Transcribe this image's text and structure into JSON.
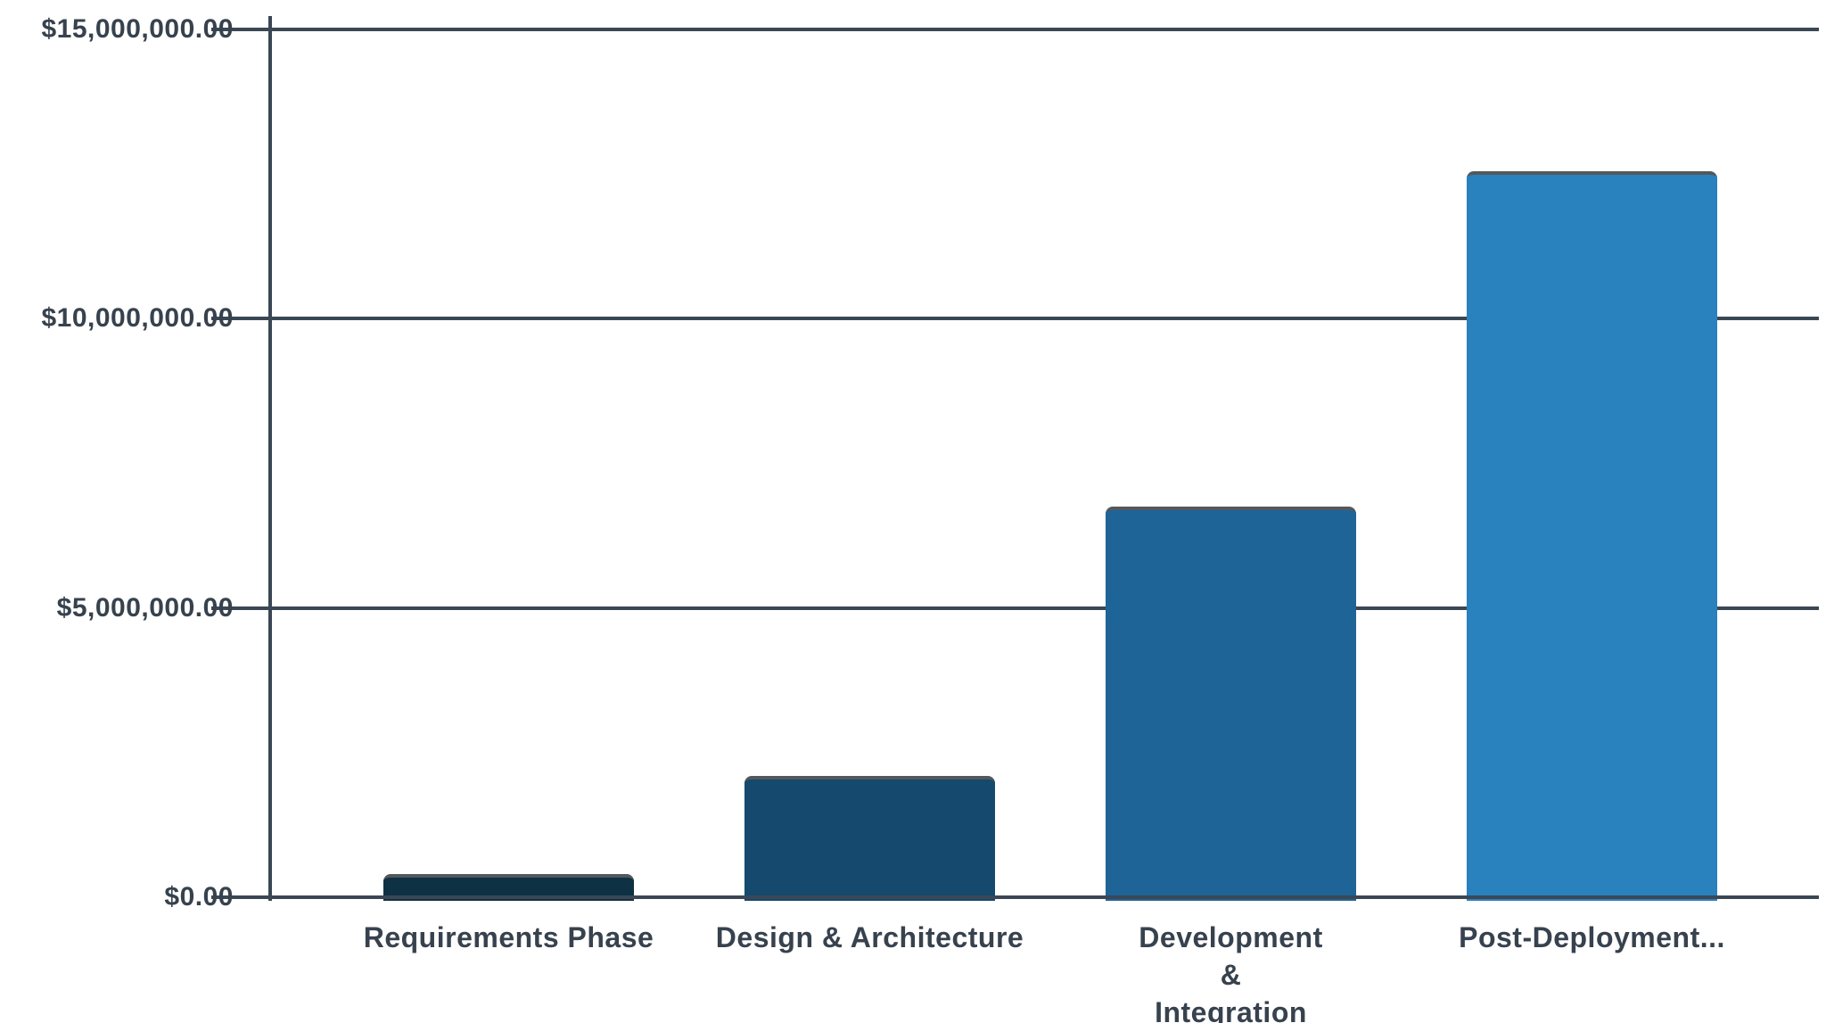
{
  "chart_data": {
    "type": "bar",
    "title": "",
    "xlabel": "",
    "ylabel": "",
    "categories": [
      "Requirements Phase",
      "Design & Architecture",
      "Development & Integration",
      "Post-Deployment..."
    ],
    "x_tick_labels_display": [
      "Requirements Phase",
      "Design & Architecture",
      "Development\n&\nIntegration",
      "Post-Deployment..."
    ],
    "values": [
      400000,
      2100000,
      6750000,
      12550000
    ],
    "y_ticks": [
      {
        "value": 15000000,
        "label": "$15,000,000.00"
      },
      {
        "value": 10000000,
        "label": "$10,000,000.00"
      },
      {
        "value": 5000000,
        "label": "$5,000,000.00"
      },
      {
        "value": 0,
        "label": "$0.00"
      }
    ],
    "ylim": [
      0,
      15000000
    ],
    "grid": true,
    "legend": false,
    "bar_colors": [
      "#0e3143",
      "#15496e",
      "#1f6497",
      "#2981bd"
    ],
    "bar_top_border_color": "#54585c",
    "axis_color": "#3b4754",
    "text_color": "#37424e",
    "background": "#ffffff"
  }
}
